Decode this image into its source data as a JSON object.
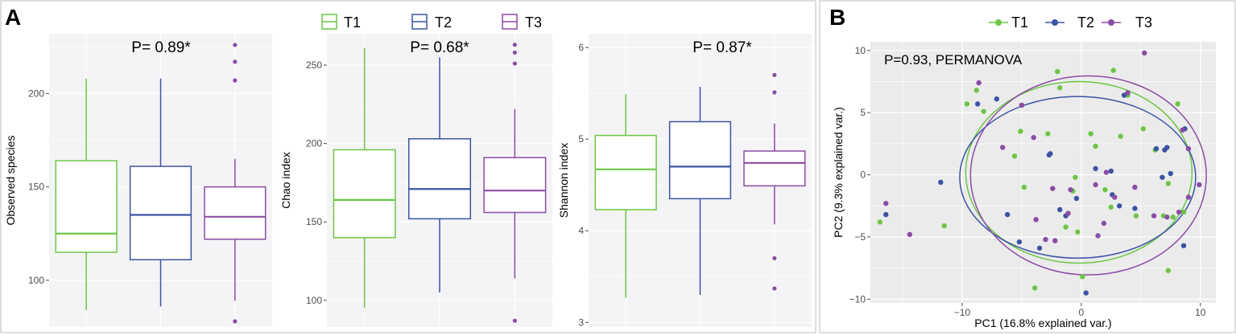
{
  "panels": {
    "a_label": "A",
    "b_label": "B"
  },
  "legend": {
    "entries": [
      {
        "label": "T1",
        "color": "#6CC644"
      },
      {
        "label": "T2",
        "color": "#3B53A4"
      },
      {
        "label": "T3",
        "color": "#8B4CA5"
      }
    ]
  },
  "chart_data": [
    {
      "type": "box",
      "title": "",
      "annotation": "P= 0.89*",
      "ylabel": "Observed species",
      "ylim": [
        75,
        232
      ],
      "yticks": [
        100,
        150,
        200
      ],
      "groups": [
        {
          "name": "T1",
          "q1": 115,
          "median": 125,
          "q3": 164,
          "whisker_low": 84,
          "whisker_high": 208,
          "outliers": []
        },
        {
          "name": "T2",
          "q1": 111,
          "median": 135,
          "q3": 161,
          "whisker_low": 86,
          "whisker_high": 208,
          "outliers": []
        },
        {
          "name": "T3",
          "q1": 122,
          "median": 134,
          "q3": 150,
          "whisker_low": 89,
          "whisker_high": 165,
          "outliers": [
            78,
            207,
            217,
            226
          ]
        }
      ]
    },
    {
      "type": "box",
      "title": "",
      "annotation": "P= 0.68*",
      "ylabel": "Chao index",
      "ylim": [
        83,
        270
      ],
      "yticks": [
        100,
        150,
        200,
        250
      ],
      "groups": [
        {
          "name": "T1",
          "q1": 140,
          "median": 164,
          "q3": 196,
          "whisker_low": 95,
          "whisker_high": 261,
          "outliers": []
        },
        {
          "name": "T2",
          "q1": 152,
          "median": 171,
          "q3": 203,
          "whisker_low": 105,
          "whisker_high": 255,
          "outliers": []
        },
        {
          "name": "T3",
          "q1": 156,
          "median": 170,
          "q3": 191,
          "whisker_low": 114,
          "whisker_high": 222,
          "outliers": [
            87,
            251,
            258,
            263
          ]
        }
      ]
    },
    {
      "type": "box",
      "title": "",
      "annotation": "P= 0.87*",
      "ylabel": "Shannon index",
      "ylim": [
        2.95,
        6.15
      ],
      "yticks": [
        3,
        4,
        5,
        6
      ],
      "groups": [
        {
          "name": "T1",
          "q1": 4.23,
          "median": 4.67,
          "q3": 5.04,
          "whisker_low": 3.27,
          "whisker_high": 5.49,
          "outliers": []
        },
        {
          "name": "T2",
          "q1": 4.35,
          "median": 4.7,
          "q3": 5.19,
          "whisker_low": 3.3,
          "whisker_high": 5.57,
          "outliers": []
        },
        {
          "name": "T3",
          "q1": 4.49,
          "median": 4.74,
          "q3": 4.87,
          "whisker_low": 4.07,
          "whisker_high": 5.17,
          "outliers": [
            3.37,
            3.7,
            5.51,
            5.7
          ]
        }
      ]
    },
    {
      "type": "scatter",
      "title": "",
      "annotation": "P=0.93, PERMANOVA",
      "xlabel": "PC1 (16.8% explained var.)",
      "ylabel": "PC2 (9.3% explained var.)",
      "xlim": [
        -17.7,
        11.3
      ],
      "ylim": [
        -10.3,
        10.7
      ],
      "xticks": [
        -10,
        0,
        10
      ],
      "yticks": [
        -10,
        -5,
        0,
        5,
        10
      ],
      "series": [
        {
          "name": "T1",
          "points": [
            [
              -16.9,
              -3.8
            ],
            [
              -11.5,
              -4.1
            ],
            [
              -9.6,
              5.7
            ],
            [
              -8.8,
              6.8
            ],
            [
              -8.2,
              5.1
            ],
            [
              -5.6,
              1.5
            ],
            [
              -4.8,
              -1.0
            ],
            [
              -5.1,
              3.5
            ],
            [
              -3.9,
              -9.1
            ],
            [
              -2.8,
              3.3
            ],
            [
              -2.0,
              8.3
            ],
            [
              -1.8,
              7.0
            ],
            [
              -1.3,
              -4.2
            ],
            [
              -0.7,
              -1.3
            ],
            [
              -0.5,
              -0.2
            ],
            [
              -0.3,
              -4.6
            ],
            [
              0.1,
              -8.2
            ],
            [
              0.8,
              3.3
            ],
            [
              1.2,
              2.3
            ],
            [
              2.0,
              -1.2
            ],
            [
              2.5,
              -2.6
            ],
            [
              2.7,
              8.4
            ],
            [
              3.3,
              3.1
            ],
            [
              3.9,
              6.4
            ],
            [
              4.6,
              -3.3
            ],
            [
              5.2,
              3.7
            ],
            [
              6.2,
              2.0
            ],
            [
              6.9,
              -3.3
            ],
            [
              7.3,
              -7.7
            ],
            [
              7.3,
              -0.7
            ],
            [
              7.7,
              -3.4
            ],
            [
              8.1,
              5.7
            ],
            [
              8.6,
              -3.0
            ]
          ]
        },
        {
          "name": "T2",
          "points": [
            [
              -16.4,
              -3.2
            ],
            [
              -11.8,
              -0.6
            ],
            [
              -8.7,
              5.7
            ],
            [
              -7.1,
              6.1
            ],
            [
              -6.2,
              -3.2
            ],
            [
              -5.2,
              -5.4
            ],
            [
              -3.5,
              -5.9
            ],
            [
              -2.7,
              1.6
            ],
            [
              -2.6,
              1.7
            ],
            [
              -1.8,
              -2.8
            ],
            [
              -1.3,
              -3.3
            ],
            [
              -0.4,
              -1.9
            ],
            [
              0.4,
              -9.5
            ],
            [
              1.2,
              0.5
            ],
            [
              2.5,
              0.3
            ],
            [
              2.6,
              -1.6
            ],
            [
              3.2,
              -2.5
            ],
            [
              3.6,
              6.4
            ],
            [
              4.5,
              -2.7
            ],
            [
              6.3,
              2.1
            ],
            [
              6.8,
              -0.2
            ],
            [
              7.0,
              2.0
            ],
            [
              7.2,
              2.2
            ],
            [
              7.5,
              0.1
            ],
            [
              8.6,
              -5.7
            ],
            [
              8.7,
              3.7
            ]
          ]
        },
        {
          "name": "T3",
          "points": [
            [
              -16.4,
              -2.3
            ],
            [
              -14.4,
              -4.8
            ],
            [
              -8.6,
              7.4
            ],
            [
              -6.6,
              2.2
            ],
            [
              -5.0,
              5.6
            ],
            [
              -4.0,
              3.0
            ],
            [
              -3.8,
              -3.6
            ],
            [
              -3.0,
              -5.2
            ],
            [
              -2.4,
              -1.1
            ],
            [
              -2.2,
              -5.3
            ],
            [
              -1.1,
              -3.1
            ],
            [
              -0.9,
              -1.2
            ],
            [
              1.2,
              -0.8
            ],
            [
              1.4,
              -4.9
            ],
            [
              1.9,
              -3.9
            ],
            [
              2.1,
              0.2
            ],
            [
              2.8,
              -1.8
            ],
            [
              3.9,
              6.6
            ],
            [
              4.5,
              -1.0
            ],
            [
              5.3,
              9.8
            ],
            [
              6.1,
              -3.3
            ],
            [
              7.2,
              -3.4
            ],
            [
              8.2,
              -3.0
            ],
            [
              8.5,
              3.6
            ],
            [
              9.0,
              2.1
            ],
            [
              9.0,
              -1.8
            ],
            [
              9.9,
              -0.8
            ]
          ]
        }
      ],
      "ellipses": [
        {
          "name": "T1",
          "cx": -0.2,
          "cy": 0.2,
          "rx": 9.5,
          "ry": 7.3
        },
        {
          "name": "T2",
          "cx": -0.3,
          "cy": -0.2,
          "rx": 9.9,
          "ry": 6.5
        },
        {
          "name": "T3",
          "cx": 0.6,
          "cy": -0.05,
          "rx": 9.9,
          "ry": 8.0
        }
      ]
    }
  ]
}
